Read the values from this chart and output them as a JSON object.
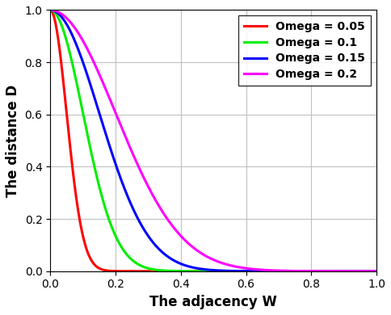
{
  "title": "",
  "xlabel": "The adjacency W",
  "ylabel": "The distance D",
  "xlim": [
    0,
    1
  ],
  "ylim": [
    0,
    1
  ],
  "xticks": [
    0,
    0.2,
    0.4,
    0.6,
    0.8,
    1.0
  ],
  "yticks": [
    0,
    0.2,
    0.4,
    0.6,
    0.8,
    1.0
  ],
  "series": [
    {
      "omega": 0.05,
      "color": "#ff0000",
      "label": "Omega = 0.05"
    },
    {
      "omega": 0.1,
      "color": "#00ee00",
      "label": "Omega = 0.1"
    },
    {
      "omega": 0.15,
      "color": "#0000ff",
      "label": "Omega = 0.15"
    },
    {
      "omega": 0.2,
      "color": "#ff00ff",
      "label": "Omega = 0.2"
    }
  ],
  "linewidth": 2.2,
  "grid": true,
  "legend_loc": "upper right",
  "legend_fontsize": 10,
  "axis_label_fontsize": 12,
  "tick_fontsize": 10,
  "background_color": "#ffffff"
}
